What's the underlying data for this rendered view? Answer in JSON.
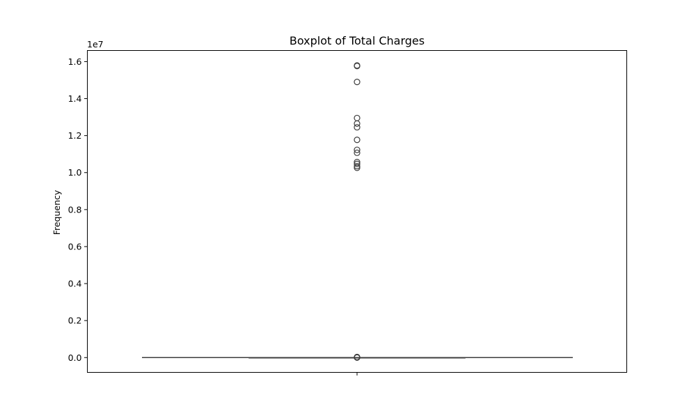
{
  "chart_data": {
    "type": "box",
    "title": "Boxplot of Total Charges",
    "xlabel": "",
    "ylabel": "Frequency",
    "y_offset_label": "1e7",
    "ylim": [
      -800000,
      16600000
    ],
    "yticks": [
      0,
      2000000,
      4000000,
      6000000,
      8000000,
      10000000,
      12000000,
      14000000,
      16000000
    ],
    "ytick_labels": [
      "0.0",
      "0.2",
      "0.4",
      "0.6",
      "0.8",
      "1.0",
      "1.2",
      "1.4",
      "1.6"
    ],
    "grid": false,
    "box": {
      "q1": 0,
      "median": 0,
      "q3": 0,
      "whisker_low": 0,
      "whisker_high": 0,
      "outliers_high": [
        15790000,
        15760000,
        14900000,
        12950000,
        12650000,
        12450000,
        11770000,
        11230000,
        11070000,
        10570000,
        10470000,
        10350000,
        10260000
      ],
      "outliers_near_zero": [
        0,
        10000,
        20000,
        30000
      ]
    },
    "colors": {
      "box_line": "#3d3d3d",
      "axis": "#000000"
    }
  }
}
